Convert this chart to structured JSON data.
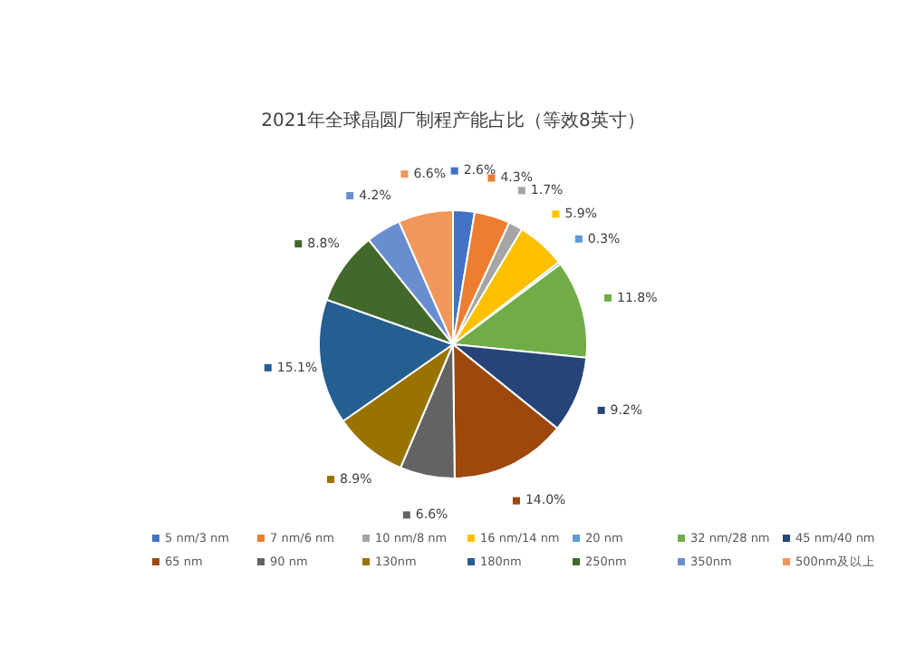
{
  "chart_data": {
    "type": "pie",
    "title": "2021年全球晶圆厂制程产能占比（等效8英寸）",
    "categories": [
      "5 nm/3 nm",
      "7 nm/6 nm",
      "10 nm/8 nm",
      "16 nm/14 nm",
      "20 nm",
      "32 nm/28 nm",
      "45 nm/40 nm",
      "65 nm",
      "90 nm",
      "130nm",
      "180nm",
      "250nm",
      "350nm",
      "500nm及以上"
    ],
    "values": [
      2.6,
      4.3,
      1.7,
      5.9,
      0.3,
      11.8,
      9.2,
      14.0,
      6.6,
      8.9,
      15.1,
      8.8,
      4.2,
      6.6
    ],
    "value_labels": [
      "2.6%",
      "4.3%",
      "1.7%",
      "5.9%",
      "0.3%",
      "11.8%",
      "9.2%",
      "14.0%",
      "6.6%",
      "8.9%",
      "15.1%",
      "8.8%",
      "4.2%",
      "6.6%"
    ],
    "colors": [
      "#4472c4",
      "#ed7d31",
      "#a5a5a5",
      "#ffc000",
      "#5b9bd5",
      "#70ad47",
      "#264478",
      "#9e480e",
      "#636363",
      "#997300",
      "#255e91",
      "#43682b",
      "#698ed0",
      "#f1975a"
    ],
    "legend": "bottom"
  }
}
